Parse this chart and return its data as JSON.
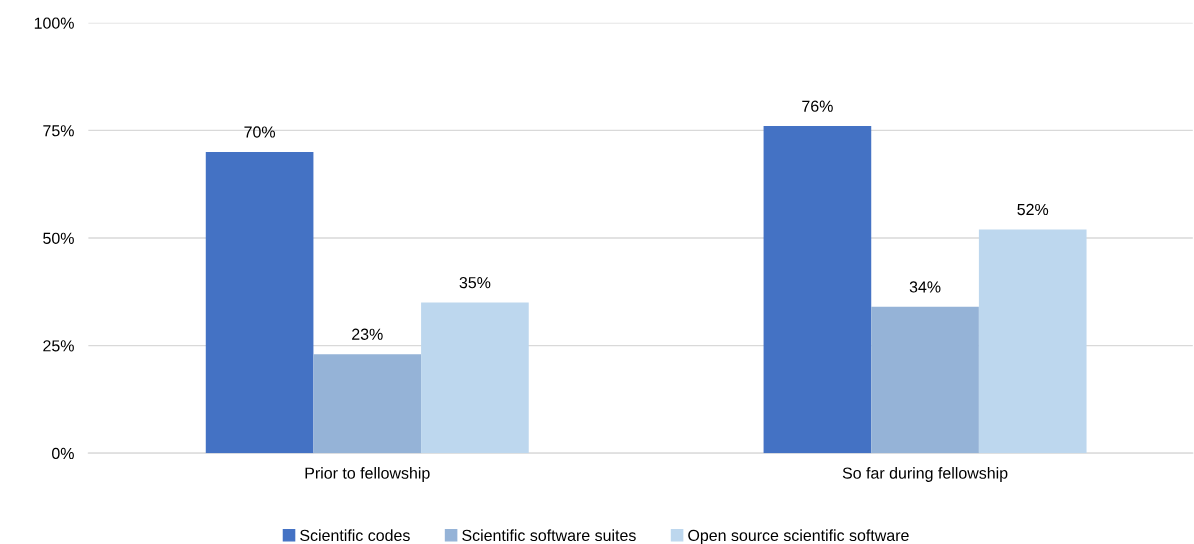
{
  "chart_data": {
    "type": "bar",
    "categories": [
      "Prior to fellowship",
      "So far during fellowship"
    ],
    "series": [
      {
        "name": "Scientific codes",
        "color": "#4472c4",
        "values": [
          70,
          76
        ],
        "value_labels": [
          "70%",
          "76%"
        ]
      },
      {
        "name": "Scientific software suites",
        "color": "#95b3d7",
        "values": [
          23,
          34
        ],
        "value_labels": [
          "23%",
          "34%"
        ]
      },
      {
        "name": "Open source scientific software",
        "color": "#bdd7ee",
        "values": [
          35,
          52
        ],
        "value_labels": [
          "35%",
          "52%"
        ]
      }
    ],
    "ylim": [
      0,
      100
    ],
    "yticks": [
      {
        "value": 0,
        "label": "0%"
      },
      {
        "value": 25,
        "label": "25%"
      },
      {
        "value": 50,
        "label": "50%"
      },
      {
        "value": 75,
        "label": "75%"
      },
      {
        "value": 100,
        "label": "100%"
      }
    ],
    "grid": "y",
    "legend": "bottom"
  }
}
